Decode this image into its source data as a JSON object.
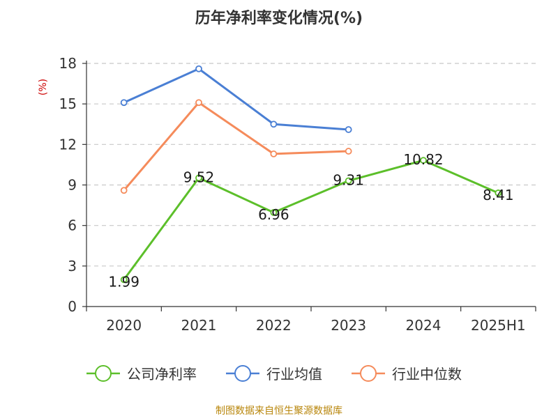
{
  "chart_data": {
    "type": "line",
    "title": "历年净利率变化情况(%)",
    "ylabel": "(%)",
    "categories": [
      "2020",
      "2021",
      "2022",
      "2023",
      "2024",
      "2025H1"
    ],
    "ylim": [
      0,
      18
    ],
    "yticks": [
      "0",
      "3",
      "6",
      "9",
      "12",
      "15",
      "18"
    ],
    "grid": "horizontal dashed",
    "legend_position": "bottom-center",
    "series": [
      {
        "name": "公司净利率",
        "color": "#5cbf2a",
        "values": [
          1.99,
          9.52,
          6.96,
          9.31,
          10.82,
          8.41
        ],
        "labels": [
          "1.99",
          "9.52",
          "6.96",
          "9.31",
          "10.82",
          "8.41"
        ]
      },
      {
        "name": "行业均值",
        "color": "#4a7fd4",
        "values": [
          15.1,
          17.6,
          13.5,
          13.1,
          null,
          null
        ]
      },
      {
        "name": "行业中位数",
        "color": "#f58b5b",
        "values": [
          8.6,
          15.1,
          11.3,
          11.5,
          null,
          null
        ]
      }
    ]
  },
  "footer": {
    "source": "制图数据来自恒生聚源数据库"
  }
}
